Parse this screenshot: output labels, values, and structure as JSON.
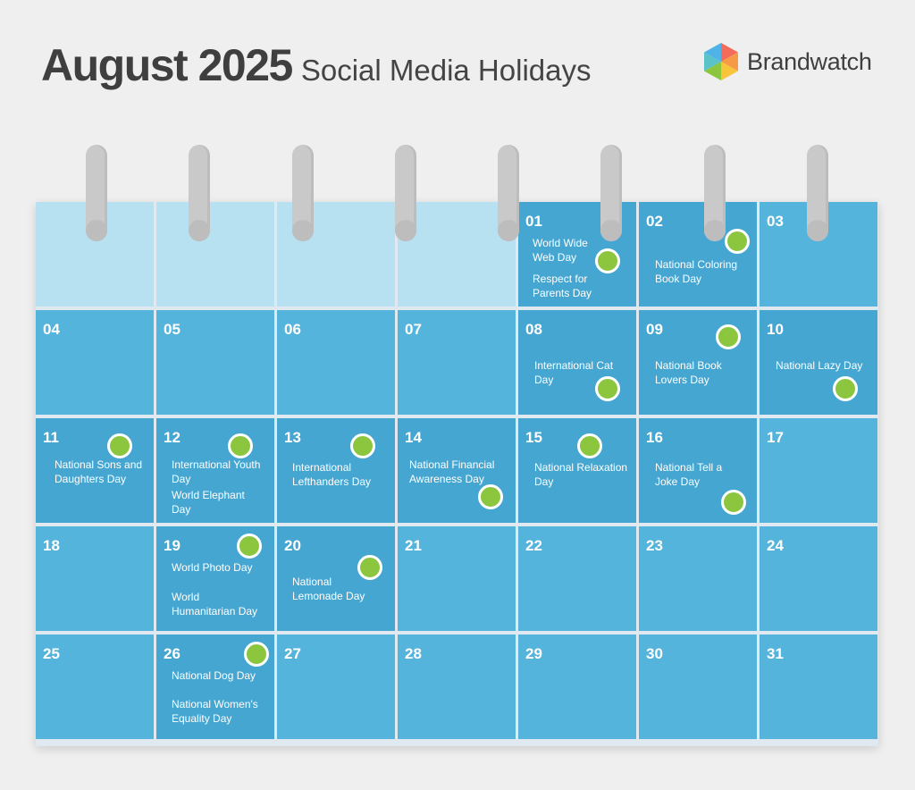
{
  "header": {
    "title": "August 2025",
    "subtitle": "Social Media Holidays",
    "brand_name": "Brandwatch",
    "brand_icon": "hexagon-logo-icon"
  },
  "colors": {
    "background": "#efefef",
    "blank_cell": "#b7e1f1",
    "day_cell": "#55b4db",
    "event_cell": "#45a6d1",
    "event_dot": "#8cc63f",
    "ring": "#c9c9c9"
  },
  "calendar": {
    "leading_blank_days": 4,
    "days": [
      {
        "day": "01",
        "events": [
          "World Wide Web Day",
          "Respect for Parents Day"
        ]
      },
      {
        "day": "02",
        "events": [
          "National Coloring Book Day"
        ]
      },
      {
        "day": "03",
        "events": []
      },
      {
        "day": "04",
        "events": []
      },
      {
        "day": "05",
        "events": []
      },
      {
        "day": "06",
        "events": []
      },
      {
        "day": "07",
        "events": []
      },
      {
        "day": "08",
        "events": [
          "International Cat Day"
        ]
      },
      {
        "day": "09",
        "events": [
          "National Book Lovers Day"
        ]
      },
      {
        "day": "10",
        "events": [
          "National Lazy Day"
        ]
      },
      {
        "day": "11",
        "events": [
          "National Sons and Daughters Day"
        ]
      },
      {
        "day": "12",
        "events": [
          "International Youth Day",
          "World Elephant Day"
        ]
      },
      {
        "day": "13",
        "events": [
          "International Lefthanders Day"
        ]
      },
      {
        "day": "14",
        "events": [
          "National Financial Awareness Day"
        ]
      },
      {
        "day": "15",
        "events": [
          "National Relaxation Day"
        ]
      },
      {
        "day": "16",
        "events": [
          "National Tell a Joke Day"
        ]
      },
      {
        "day": "17",
        "events": []
      },
      {
        "day": "18",
        "events": []
      },
      {
        "day": "19",
        "events": [
          "World Photo Day",
          "World Humanitarian Day"
        ]
      },
      {
        "day": "20",
        "events": [
          "National Lemonade Day"
        ]
      },
      {
        "day": "21",
        "events": []
      },
      {
        "day": "22",
        "events": []
      },
      {
        "day": "23",
        "events": []
      },
      {
        "day": "24",
        "events": []
      },
      {
        "day": "25",
        "events": []
      },
      {
        "day": "26",
        "events": [
          "National Dog Day",
          "National Women's Equality Day"
        ]
      },
      {
        "day": "27",
        "events": []
      },
      {
        "day": "28",
        "events": []
      },
      {
        "day": "29",
        "events": []
      },
      {
        "day": "30",
        "events": []
      },
      {
        "day": "31",
        "events": []
      }
    ]
  }
}
